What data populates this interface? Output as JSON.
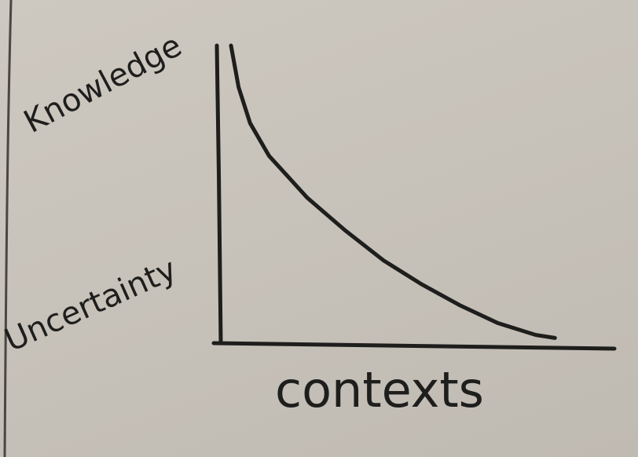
{
  "chart_data": {
    "type": "line",
    "title": "",
    "xlabel": "contexts",
    "ylabel_top": "Knowledge",
    "ylabel_bottom": "Uncertainty",
    "xlim": [
      0,
      1
    ],
    "ylim": [
      0,
      1
    ],
    "grid": false,
    "series": [
      {
        "x": [
          0.0,
          0.02,
          0.05,
          0.1,
          0.15,
          0.2,
          0.3,
          0.4,
          0.5,
          0.6,
          0.7,
          0.8,
          0.85
        ],
        "y": [
          1.0,
          0.86,
          0.74,
          0.63,
          0.56,
          0.49,
          0.38,
          0.28,
          0.2,
          0.13,
          0.07,
          0.03,
          0.02
        ]
      }
    ],
    "colors": {
      "ink": "#1e1e1c",
      "paper": "#c9c4bc"
    }
  }
}
